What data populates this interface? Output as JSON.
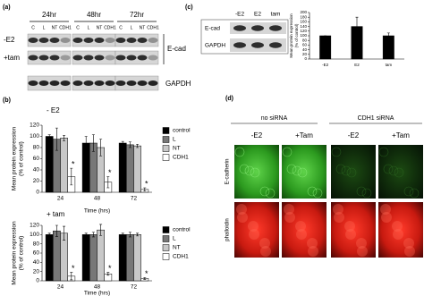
{
  "panel_a": {
    "label": "(a)",
    "times": [
      "24hr",
      "48hr",
      "72hr"
    ],
    "lanes": [
      "C",
      "L",
      "NT",
      "CDH1"
    ],
    "rows": [
      "-E2",
      "+tam"
    ],
    "protein": "E-cad",
    "loading": "GAPDH"
  },
  "panel_b": {
    "label": "(b)"
  },
  "panel_c": {
    "label": "(c)",
    "lanes": [
      "-E2",
      "E2",
      "tam"
    ],
    "protein": "E-cad",
    "loading": "GAPDH"
  },
  "panel_d": {
    "label": "(d)",
    "groups": [
      "no siRNA",
      "CDH1 siRNA"
    ],
    "conditions": [
      "-E2",
      "+Tam"
    ],
    "stains": [
      "E-cadherin",
      "phalloidin"
    ]
  },
  "chart_data": [
    {
      "type": "bar",
      "title": "- E2",
      "ylabel": [
        "Mean protein expression",
        "(% of control)"
      ],
      "xlabel": "Time (hrs)",
      "categories": [
        "24",
        "48",
        "72"
      ],
      "series": [
        {
          "name": "control",
          "color": "#000000",
          "values": [
            100,
            88,
            88
          ],
          "errors": [
            3,
            12,
            3
          ]
        },
        {
          "name": "L",
          "color": "#777777",
          "values": [
            95,
            88,
            85
          ],
          "errors": [
            20,
            15,
            5
          ]
        },
        {
          "name": "NT",
          "color": "#c8c8c8",
          "values": [
            97,
            80,
            83
          ],
          "errors": [
            5,
            15,
            3
          ]
        },
        {
          "name": "CDH1",
          "color": "#ffffff",
          "values": [
            28,
            18,
            5
          ],
          "errors": [
            15,
            10,
            3
          ],
          "markers": [
            "*",
            "*",
            "*"
          ]
        }
      ],
      "ylim": [
        0,
        120
      ],
      "yticks": [
        0,
        20,
        40,
        60,
        80,
        100,
        120
      ]
    },
    {
      "type": "bar",
      "title": "+ tam",
      "ylabel": [
        "Mean protein expression",
        "(% of control)"
      ],
      "xlabel": "Time (hrs)",
      "categories": [
        "24",
        "48",
        "72"
      ],
      "series": [
        {
          "name": "control",
          "color": "#000000",
          "values": [
            100,
            100,
            100
          ],
          "errors": [
            3,
            3,
            3
          ]
        },
        {
          "name": "L",
          "color": "#777777",
          "values": [
            108,
            100,
            100
          ],
          "errors": [
            12,
            5,
            5
          ]
        },
        {
          "name": "NT",
          "color": "#c8c8c8",
          "values": [
            103,
            110,
            100
          ],
          "errors": [
            15,
            12,
            3
          ]
        },
        {
          "name": "CDH1",
          "color": "#ffffff",
          "values": [
            10,
            15,
            5
          ],
          "errors": [
            8,
            3,
            2
          ],
          "markers": [
            "*",
            "*",
            "*"
          ]
        }
      ],
      "ylim": [
        0,
        120
      ],
      "yticks": [
        0,
        20,
        40,
        60,
        80,
        100,
        120
      ]
    },
    {
      "type": "bar",
      "ylabel": [
        "Mean protein expression",
        "(% of control)"
      ],
      "categories": [
        "-E2",
        "E2",
        "tam"
      ],
      "values": [
        100,
        140,
        100
      ],
      "errors": [
        0,
        40,
        12
      ],
      "color": "#000000",
      "ylim": [
        0,
        200
      ],
      "yticks": [
        0,
        20,
        40,
        60,
        80,
        100,
        120,
        140,
        160,
        180,
        200
      ]
    }
  ]
}
